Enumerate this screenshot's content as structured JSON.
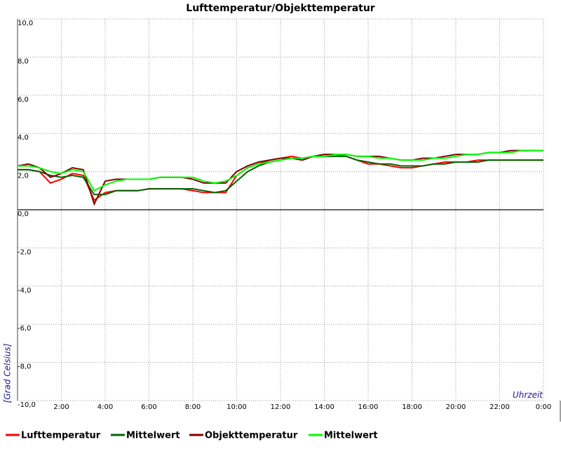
{
  "chart_data": {
    "type": "line",
    "title": "Lufttemperatur/Objekttemperatur",
    "y_label": "[Grad Celsius]",
    "x_label": "Uhrzeit",
    "x": [
      0,
      0.5,
      1,
      1.5,
      2,
      2.5,
      3,
      3.5,
      4,
      4.5,
      5,
      5.5,
      6,
      6.5,
      7,
      7.5,
      8,
      8.5,
      9,
      9.5,
      10,
      10.5,
      11,
      11.5,
      12,
      12.5,
      13,
      13.5,
      14,
      14.5,
      15,
      15.5,
      16,
      16.5,
      17,
      17.5,
      18,
      18.5,
      19,
      19.5,
      20,
      20.5,
      21,
      21.5,
      22,
      22.5,
      23,
      23.5,
      24
    ],
    "series": [
      {
        "name": "Lufttemperatur",
        "color": "#ff0000",
        "values": [
          2.1,
          2.1,
          2.0,
          1.4,
          1.6,
          1.9,
          1.8,
          0.5,
          0.9,
          1.0,
          1.0,
          1.0,
          1.1,
          1.1,
          1.1,
          1.1,
          1.0,
          0.9,
          0.9,
          0.9,
          1.8,
          2.2,
          2.4,
          2.6,
          2.7,
          2.8,
          2.7,
          2.8,
          2.9,
          2.9,
          2.8,
          2.6,
          2.4,
          2.4,
          2.3,
          2.2,
          2.2,
          2.3,
          2.4,
          2.5,
          2.5,
          2.5,
          2.6,
          2.6,
          2.6,
          2.6,
          2.6,
          2.6,
          2.6
        ]
      },
      {
        "name": "Mittelwert",
        "color": "#006400",
        "values": [
          2.1,
          2.1,
          2.0,
          1.8,
          1.7,
          1.8,
          1.7,
          0.8,
          0.8,
          1.0,
          1.0,
          1.0,
          1.1,
          1.1,
          1.1,
          1.1,
          1.1,
          1.0,
          0.9,
          1.0,
          1.5,
          2.0,
          2.3,
          2.5,
          2.6,
          2.7,
          2.7,
          2.8,
          2.8,
          2.8,
          2.8,
          2.6,
          2.5,
          2.4,
          2.4,
          2.3,
          2.3,
          2.3,
          2.4,
          2.4,
          2.5,
          2.5,
          2.5,
          2.6,
          2.6,
          2.6,
          2.6,
          2.6,
          2.6
        ]
      },
      {
        "name": "Objekttemperatur",
        "color": "#800000",
        "values": [
          2.3,
          2.4,
          2.2,
          1.7,
          1.9,
          2.2,
          2.1,
          0.3,
          1.5,
          1.6,
          1.6,
          1.6,
          1.6,
          1.7,
          1.7,
          1.7,
          1.6,
          1.4,
          1.4,
          1.4,
          2.0,
          2.3,
          2.5,
          2.6,
          2.7,
          2.7,
          2.6,
          2.8,
          2.9,
          2.9,
          2.9,
          2.8,
          2.8,
          2.8,
          2.7,
          2.6,
          2.6,
          2.7,
          2.7,
          2.8,
          2.9,
          2.9,
          2.9,
          3.0,
          3.0,
          3.1,
          3.1,
          3.1,
          3.1
        ]
      },
      {
        "name": "Mittelwert",
        "color": "#00ff00",
        "values": [
          2.3,
          2.3,
          2.2,
          2.0,
          1.9,
          2.1,
          2.0,
          1.0,
          1.3,
          1.5,
          1.6,
          1.6,
          1.6,
          1.7,
          1.7,
          1.7,
          1.7,
          1.5,
          1.4,
          1.5,
          1.8,
          2.2,
          2.4,
          2.5,
          2.6,
          2.7,
          2.7,
          2.8,
          2.8,
          2.9,
          2.9,
          2.8,
          2.8,
          2.7,
          2.7,
          2.6,
          2.6,
          2.6,
          2.7,
          2.7,
          2.8,
          2.9,
          2.9,
          3.0,
          3.0,
          3.0,
          3.1,
          3.1,
          3.1
        ]
      }
    ],
    "xlim": [
      0,
      24
    ],
    "xticks": [
      {
        "value": 2,
        "label": "2:00"
      },
      {
        "value": 4,
        "label": "4:00"
      },
      {
        "value": 6,
        "label": "6:00"
      },
      {
        "value": 8,
        "label": "8:00"
      },
      {
        "value": 10,
        "label": "10:00"
      },
      {
        "value": 12,
        "label": "12:00"
      },
      {
        "value": 14,
        "label": "14:00"
      },
      {
        "value": 16,
        "label": "16:00"
      },
      {
        "value": 18,
        "label": "18:00"
      },
      {
        "value": 20,
        "label": "20:00"
      },
      {
        "value": 22,
        "label": "22:00"
      },
      {
        "value": 24,
        "label": "0:00"
      }
    ],
    "ylim": [
      -10,
      10
    ],
    "yticks": [
      {
        "value": -10,
        "label": "-10,0"
      },
      {
        "value": -8,
        "label": "-8,0"
      },
      {
        "value": -6,
        "label": "-6,0"
      },
      {
        "value": -4,
        "label": "-4,0"
      },
      {
        "value": -2,
        "label": "-2,0"
      },
      {
        "value": 0,
        "label": "0,0"
      },
      {
        "value": 2,
        "label": "2,0"
      },
      {
        "value": 4,
        "label": "4,0"
      },
      {
        "value": 6,
        "label": "6,0"
      },
      {
        "value": 8,
        "label": "8,0"
      },
      {
        "value": 10,
        "label": "10,0"
      }
    ],
    "grid": true
  }
}
